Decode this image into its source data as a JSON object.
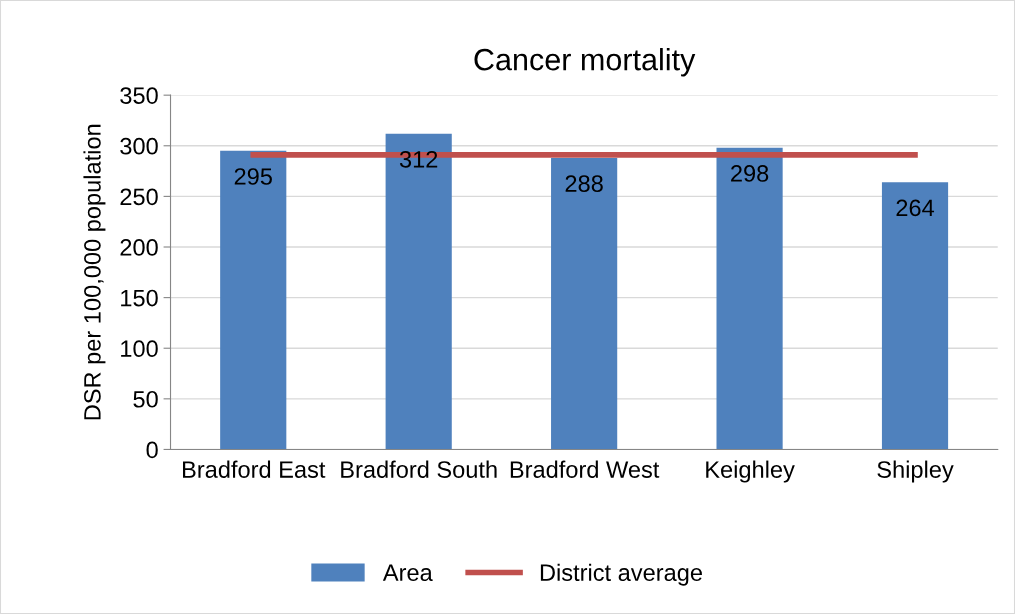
{
  "chart_data": {
    "type": "bar",
    "title": "Cancer mortality",
    "ylabel": "DSR per 100,000 population",
    "categories": [
      "Bradford East",
      "Bradford South",
      "Bradford West",
      "Keighley",
      "Shipley"
    ],
    "series": [
      {
        "name": "Area",
        "color": "#4f81bd",
        "values": [
          295,
          312,
          288,
          298,
          264
        ],
        "value_labels": [
          "295",
          "312",
          "288",
          "298",
          "264"
        ]
      },
      {
        "name": "District average",
        "type": "line",
        "color": "#c0504d",
        "values": [
          291,
          291,
          291,
          291,
          291
        ]
      }
    ],
    "ylim": [
      0,
      350
    ],
    "yticks": [
      0,
      50,
      100,
      150,
      200,
      250,
      300,
      350
    ],
    "grid": "y",
    "legend": "bottom",
    "marker": "none"
  }
}
